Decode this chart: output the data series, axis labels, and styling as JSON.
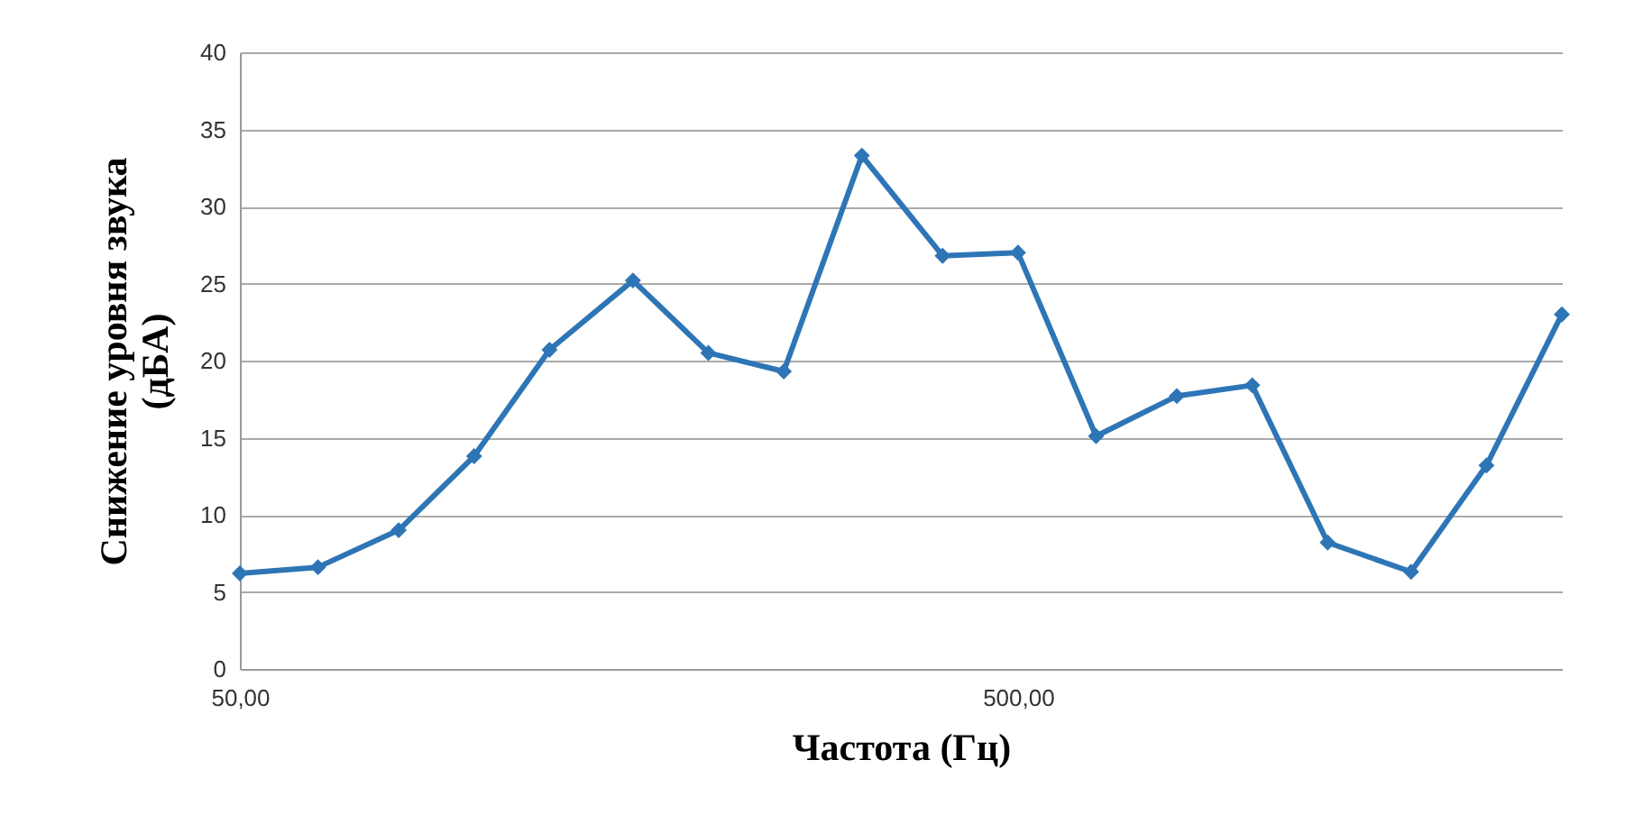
{
  "chart_data": {
    "type": "line",
    "xlabel": "Частота (Гц)",
    "ylabel": "Снижение уровня звука (дБА)",
    "x": [
      50,
      63,
      80,
      100,
      125,
      160,
      200,
      250,
      315,
      400,
      500,
      630,
      800,
      1000,
      1250,
      1600,
      2000,
      2500
    ],
    "series": [
      {
        "color": "#2e75b6",
        "values": [
          6.2,
          6.6,
          9.0,
          13.8,
          20.7,
          25.2,
          20.5,
          19.3,
          33.3,
          26.8,
          27.0,
          15.1,
          17.7,
          18.4,
          8.2,
          6.3,
          13.2,
          23.0
        ]
      }
    ],
    "log": "x",
    "xlim": [
      50,
      2500
    ],
    "xticks": [
      {
        "value": 50,
        "label": "50,00"
      },
      {
        "value": 500,
        "label": "500,00"
      }
    ],
    "ylim": [
      0,
      40
    ],
    "yticks": [
      0,
      5,
      10,
      15,
      20,
      25,
      30,
      35,
      40
    ],
    "grid": "y",
    "marker": "diamond",
    "line_style": "solid"
  }
}
